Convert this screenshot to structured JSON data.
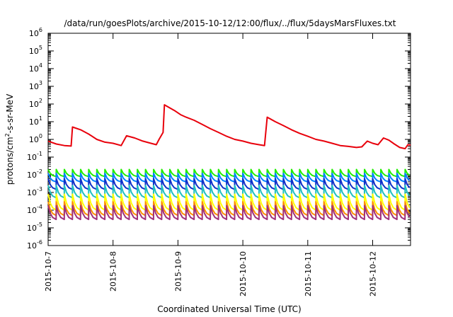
{
  "chart_data": {
    "type": "line",
    "title": "/data/run/goesPlots/archive/2015-10-12/12:00/flux/../flux/5daysMarsFluxes.txt",
    "xlabel": "Coordinated Universal Time (UTC)",
    "ylabel": {
      "pre": "protons/cm",
      "sup": "2",
      "post": "-s-sr-MeV"
    },
    "y_scale": "log",
    "ylim": [
      1e-06,
      1000000.0
    ],
    "y_ticks": [
      {
        "base": "10",
        "exp": "-6"
      },
      {
        "base": "10",
        "exp": "-5"
      },
      {
        "base": "10",
        "exp": "-4"
      },
      {
        "base": "10",
        "exp": "-3"
      },
      {
        "base": "10",
        "exp": "-2"
      },
      {
        "base": "10",
        "exp": "-1"
      },
      {
        "base": "10",
        "exp": "0"
      },
      {
        "base": "10",
        "exp": "1"
      },
      {
        "base": "10",
        "exp": "2"
      },
      {
        "base": "10",
        "exp": "3"
      },
      {
        "base": "10",
        "exp": "4"
      },
      {
        "base": "10",
        "exp": "5"
      },
      {
        "base": "10",
        "exp": "6"
      }
    ],
    "xlim": [
      "2015-10-07T00:00",
      "2015-10-12T14:00"
    ],
    "x_ticks": [
      "2015-10-7",
      "2015-10-8",
      "2015-10-9",
      "2015-10-10",
      "2015-10-11",
      "2015-10-12"
    ],
    "grid": false,
    "series": [
      {
        "color": "#e8000b",
        "points": [
          [
            "2015-10-07T00:00",
            0.8
          ],
          [
            "2015-10-07T03:00",
            0.55
          ],
          [
            "2015-10-07T06:00",
            0.45
          ],
          [
            "2015-10-07T08:30",
            0.42
          ],
          [
            "2015-10-07T09:00",
            5.0
          ],
          [
            "2015-10-07T12:00",
            3.5
          ],
          [
            "2015-10-07T15:00",
            2.0
          ],
          [
            "2015-10-07T18:00",
            1.0
          ],
          [
            "2015-10-07T21:00",
            0.7
          ],
          [
            "2015-10-08T00:00",
            0.6
          ],
          [
            "2015-10-08T03:00",
            0.45
          ],
          [
            "2015-10-08T05:00",
            1.6
          ],
          [
            "2015-10-08T08:00",
            1.2
          ],
          [
            "2015-10-08T11:00",
            0.8
          ],
          [
            "2015-10-08T14:00",
            0.6
          ],
          [
            "2015-10-08T16:00",
            0.5
          ],
          [
            "2015-10-08T17:00",
            1.0
          ],
          [
            "2015-10-08T18:30",
            2.5
          ],
          [
            "2015-10-08T19:00",
            90
          ],
          [
            "2015-10-08T21:00",
            60
          ],
          [
            "2015-10-08T23:00",
            40
          ],
          [
            "2015-10-09T01:00",
            25
          ],
          [
            "2015-10-09T03:00",
            18
          ],
          [
            "2015-10-09T06:00",
            12
          ],
          [
            "2015-10-09T09:00",
            7
          ],
          [
            "2015-10-09T12:00",
            4
          ],
          [
            "2015-10-09T15:00",
            2.5
          ],
          [
            "2015-10-09T18:00",
            1.5
          ],
          [
            "2015-10-09T21:00",
            1.0
          ],
          [
            "2015-10-10T00:00",
            0.8
          ],
          [
            "2015-10-10T03:00",
            0.6
          ],
          [
            "2015-10-10T06:00",
            0.5
          ],
          [
            "2015-10-10T08:00",
            0.45
          ],
          [
            "2015-10-10T09:00",
            18
          ],
          [
            "2015-10-10T12:00",
            10
          ],
          [
            "2015-10-10T15:00",
            6
          ],
          [
            "2015-10-10T18:00",
            3.5
          ],
          [
            "2015-10-10T21:00",
            2.2
          ],
          [
            "2015-10-11T00:00",
            1.5
          ],
          [
            "2015-10-11T03:00",
            1.0
          ],
          [
            "2015-10-11T06:00",
            0.8
          ],
          [
            "2015-10-11T09:00",
            0.6
          ],
          [
            "2015-10-11T12:00",
            0.45
          ],
          [
            "2015-10-11T15:00",
            0.4
          ],
          [
            "2015-10-11T18:00",
            0.35
          ],
          [
            "2015-10-11T20:00",
            0.38
          ],
          [
            "2015-10-11T22:00",
            0.8
          ],
          [
            "2015-10-12T00:00",
            0.6
          ],
          [
            "2015-10-12T02:00",
            0.5
          ],
          [
            "2015-10-12T04:00",
            1.2
          ],
          [
            "2015-10-12T06:00",
            0.9
          ],
          [
            "2015-10-12T08:00",
            0.55
          ],
          [
            "2015-10-12T10:00",
            0.35
          ],
          [
            "2015-10-12T12:00",
            0.3
          ],
          [
            "2015-10-12T13:00",
            0.5
          ],
          [
            "2015-10-12T14:00",
            0.48
          ]
        ]
      },
      {
        "color": "#21ee00",
        "peak": 0.02,
        "trough": 0.008
      },
      {
        "color": "#0080ff",
        "peak": 0.012,
        "trough": 0.004
      },
      {
        "color": "#1030c8",
        "peak": 0.006,
        "trough": 0.0015
      },
      {
        "color": "#20c0c0",
        "peak": 0.0025,
        "trough": 0.0005
      },
      {
        "color": "#ffff00",
        "peak": 0.0008,
        "trough": 0.0001
      },
      {
        "color": "#ff9000",
        "peak": 0.0003,
        "trough": 5e-05
      },
      {
        "color": "#a0307c",
        "peak": 0.00018,
        "trough": 3e-05
      }
    ]
  }
}
